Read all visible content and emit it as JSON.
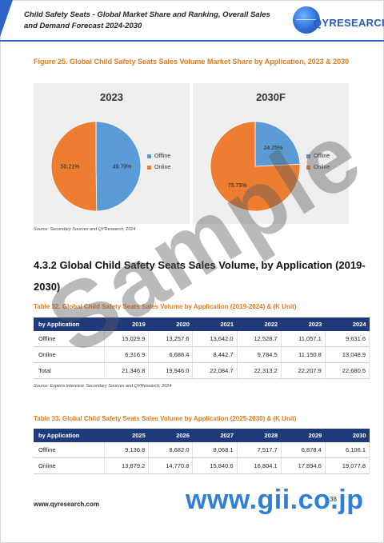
{
  "header": {
    "title": "Child Safety Seats - Global Market Share and Ranking, Overall Sales and Demand Forecast 2024-2030",
    "logo_text": "QYRESEARCH"
  },
  "figure": {
    "caption": "Figure 25.   Global Child Safety Seats Sales Volume Market Share by Application, 2023 & 2030",
    "source": "Source: Secondary Sources and QYResearch, 2024"
  },
  "chart_data": [
    {
      "type": "pie",
      "title": "2023",
      "categories": [
        "Offline",
        "Online"
      ],
      "values": [
        49.79,
        50.21
      ],
      "value_labels": [
        "49.79%",
        "50.21%"
      ],
      "colors": [
        "#5b9bd5",
        "#ed7d31"
      ],
      "legend_position": "right"
    },
    {
      "type": "pie",
      "title": "2030F",
      "categories": [
        "Offline",
        "Online"
      ],
      "values": [
        24.25,
        75.75
      ],
      "value_labels": [
        "24.25%",
        "75.75%"
      ],
      "colors": [
        "#5b9bd5",
        "#ed7d31"
      ],
      "legend_position": "right"
    }
  ],
  "section": {
    "heading": "4.3.2  Global Child Safety Seats Sales Volume, by Application (2019-2030)"
  },
  "table32": {
    "caption": "Table 32.   Global Child Safety Seats Sales Volume by Application (2019-2024) & (K Unit)",
    "headers": [
      "by Application",
      "2019",
      "2020",
      "2021",
      "2022",
      "2023",
      "2024"
    ],
    "rows": [
      [
        "Offline",
        "15,029.9",
        "13,257.6",
        "13,642.0",
        "12,528.7",
        "11,057.1",
        "9,631.6"
      ],
      [
        "Online",
        "6,316.9",
        "6,688.4",
        "8,442.7",
        "9,784.5",
        "11,150.8",
        "13,048.9"
      ],
      [
        "Total",
        "21,346.8",
        "19,946.0",
        "22,084.7",
        "22,313.2",
        "22,207.9",
        "22,680.5"
      ]
    ],
    "source": "Source: Experts Interview, Secondary Sources and QYResearch, 2024"
  },
  "table33": {
    "caption": "Table 33.   Global Child Safety Seats Sales Volume by Application (2025-2030) & (K Unit)",
    "headers": [
      "by Application",
      "2025",
      "2026",
      "2027",
      "2028",
      "2029",
      "2030"
    ],
    "rows": [
      [
        "Offline",
        "9,136.8",
        "8,682.0",
        "8,068.1",
        "7,517.7",
        "6,878.4",
        "6,106.1"
      ],
      [
        "Online",
        "13,879.2",
        "14,770.8",
        "15,840.6",
        "16,804.1",
        "17,894.6",
        "19,077.8"
      ]
    ]
  },
  "footer": {
    "url": "www.qyresearch.com",
    "page": "38"
  },
  "watermark": {
    "text": "Sample",
    "brand": "www.gii.co.jp"
  }
}
